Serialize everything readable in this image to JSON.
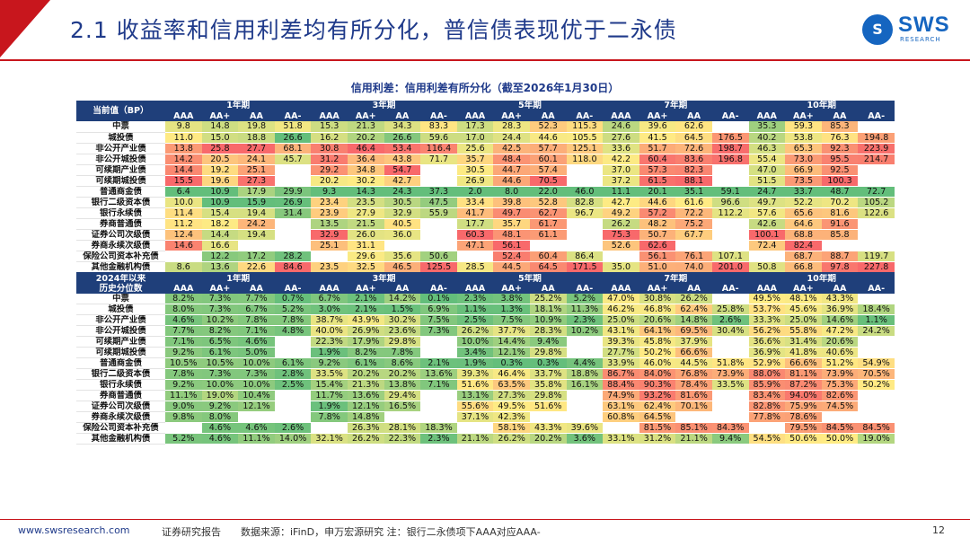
{
  "header": {
    "title": "2.1 收益率和信用利差均有所分化，普信债表现优于二永债",
    "logo_text": "SWS",
    "logo_sub": "RESEARCH",
    "logo_mark": "S"
  },
  "table_caption": "信用利差：信用利差有所分化（截至2026年1月30日）",
  "colors": {
    "header_bg": "#1f3f7a",
    "accent_red": "#c8161d",
    "title_blue": "#1f3a8a"
  },
  "table": {
    "terms": [
      "1年期",
      "3年期",
      "5年期",
      "7年期",
      "10年期"
    ],
    "grades": [
      "AAA",
      "AA+",
      "AA",
      "AA-"
    ],
    "block1": {
      "label_top": "当前值（BP）",
      "rows": [
        {
          "name": "中票",
          "values": [
            "9.8",
            "14.8",
            "19.8",
            "51.8",
            "15.3",
            "21.3",
            "34.3",
            "83.3",
            "17.3",
            "28.3",
            "52.3",
            "115.3",
            "24.6",
            "39.6",
            "62.6",
            "",
            "35.3",
            "59.3",
            "85.3",
            ""
          ]
        },
        {
          "name": "城投债",
          "values": [
            "11.0",
            "15.0",
            "18.8",
            "26.6",
            "16.2",
            "20.2",
            "26.6",
            "59.6",
            "17.0",
            "24.4",
            "44.6",
            "105.5",
            "27.6",
            "41.5",
            "64.5",
            "176.5",
            "40.2",
            "53.8",
            "76.3",
            "194.8"
          ]
        },
        {
          "name": "非公开产业债",
          "values": [
            "13.8",
            "25.8",
            "27.7",
            "68.1",
            "30.8",
            "46.4",
            "53.4",
            "116.4",
            "25.6",
            "42.5",
            "57.7",
            "125.1",
            "33.6",
            "51.7",
            "72.6",
            "198.7",
            "46.3",
            "65.3",
            "92.3",
            "223.9"
          ]
        },
        {
          "name": "非公开城投债",
          "values": [
            "14.2",
            "20.5",
            "24.1",
            "45.7",
            "31.2",
            "36.4",
            "43.8",
            "71.7",
            "35.7",
            "48.4",
            "60.1",
            "118.0",
            "42.2",
            "60.4",
            "83.6",
            "196.8",
            "55.4",
            "73.0",
            "95.5",
            "214.7"
          ]
        },
        {
          "name": "可续期产业债",
          "values": [
            "14.4",
            "19.2",
            "25.1",
            "",
            "29.2",
            "34.8",
            "54.7",
            "",
            "30.5",
            "44.7",
            "57.4",
            "",
            "37.0",
            "57.3",
            "82.3",
            "",
            "47.0",
            "66.9",
            "92.5",
            ""
          ]
        },
        {
          "name": "可续期城投债",
          "values": [
            "15.5",
            "19.6",
            "27.3",
            "",
            "20.2",
            "30.2",
            "42.7",
            "",
            "26.9",
            "44.6",
            "70.5",
            "",
            "37.2",
            "61.5",
            "88.1",
            "",
            "51.5",
            "73.5",
            "100.3",
            ""
          ]
        },
        {
          "name": "普通商金债",
          "values": [
            "6.4",
            "10.9",
            "17.9",
            "29.9",
            "9.3",
            "14.3",
            "24.3",
            "37.3",
            "2.0",
            "8.0",
            "22.0",
            "46.0",
            "11.1",
            "20.1",
            "35.1",
            "59.1",
            "24.7",
            "33.7",
            "48.7",
            "72.7"
          ]
        },
        {
          "name": "银行二级资本债",
          "values": [
            "10.0",
            "10.9",
            "15.9",
            "26.9",
            "23.4",
            "23.5",
            "30.5",
            "47.5",
            "33.4",
            "39.8",
            "52.8",
            "82.8",
            "42.7",
            "44.6",
            "61.6",
            "96.6",
            "49.7",
            "52.2",
            "70.2",
            "105.2"
          ]
        },
        {
          "name": "银行永续债",
          "values": [
            "11.4",
            "15.4",
            "19.4",
            "31.4",
            "23.9",
            "27.9",
            "32.9",
            "55.9",
            "41.7",
            "49.7",
            "62.7",
            "96.7",
            "49.2",
            "57.2",
            "72.2",
            "112.2",
            "57.6",
            "65.6",
            "81.6",
            "122.6"
          ]
        },
        {
          "name": "券商普通债",
          "values": [
            "11.2",
            "18.2",
            "24.2",
            "",
            "13.5",
            "21.5",
            "40.5",
            "",
            "17.7",
            "35.7",
            "61.7",
            "",
            "26.2",
            "48.2",
            "75.2",
            "",
            "42.6",
            "64.6",
            "91.6",
            ""
          ]
        },
        {
          "name": "证券公司次级债",
          "values": [
            "12.4",
            "14.4",
            "19.4",
            "",
            "32.9",
            "26.0",
            "36.0",
            "",
            "60.3",
            "48.1",
            "61.1",
            "",
            "75.3",
            "50.7",
            "67.7",
            "",
            "100.1",
            "68.8",
            "85.8",
            ""
          ]
        },
        {
          "name": "券商永续次级债",
          "values": [
            "14.6",
            "16.6",
            "",
            "",
            "25.1",
            "31.1",
            "",
            "",
            "47.1",
            "56.1",
            "",
            "",
            "52.6",
            "62.6",
            "",
            "",
            "72.4",
            "82.4",
            "",
            ""
          ]
        },
        {
          "name": "保险公司资本补充债",
          "values": [
            "",
            "12.2",
            "17.2",
            "28.2",
            "",
            "29.6",
            "35.6",
            "50.6",
            "",
            "52.4",
            "60.4",
            "86.4",
            "",
            "56.1",
            "76.1",
            "107.1",
            "",
            "68.7",
            "88.7",
            "119.7"
          ]
        },
        {
          "name": "其他金融机构债",
          "values": [
            "8.6",
            "13.6",
            "22.6",
            "84.6",
            "23.5",
            "32.5",
            "46.5",
            "125.5",
            "28.5",
            "44.5",
            "64.5",
            "171.5",
            "35.0",
            "51.0",
            "74.0",
            "201.0",
            "50.8",
            "66.8",
            "97.8",
            "227.8"
          ]
        }
      ]
    },
    "block2": {
      "label_top": "2024年以来",
      "label_bottom": "历史分位数",
      "rows": [
        {
          "name": "中票",
          "values": [
            "8.2%",
            "7.3%",
            "7.7%",
            "0.7%",
            "6.7%",
            "2.1%",
            "14.2%",
            "0.1%",
            "2.3%",
            "3.8%",
            "25.2%",
            "5.2%",
            "47.0%",
            "30.8%",
            "26.2%",
            "",
            "49.5%",
            "48.1%",
            "43.3%",
            ""
          ]
        },
        {
          "name": "城投债",
          "values": [
            "8.0%",
            "7.3%",
            "6.7%",
            "5.2%",
            "3.0%",
            "2.1%",
            "1.5%",
            "6.9%",
            "1.1%",
            "1.3%",
            "18.1%",
            "11.3%",
            "46.2%",
            "46.8%",
            "62.4%",
            "25.8%",
            "53.7%",
            "45.6%",
            "36.9%",
            "18.4%"
          ]
        },
        {
          "name": "非公开产业债",
          "values": [
            "4.6%",
            "10.2%",
            "7.8%",
            "7.8%",
            "38.7%",
            "43.9%",
            "30.2%",
            "7.5%",
            "2.5%",
            "7.5%",
            "10.9%",
            "2.3%",
            "25.0%",
            "20.6%",
            "14.8%",
            "2.6%",
            "33.3%",
            "25.0%",
            "14.6%",
            "1.1%"
          ]
        },
        {
          "name": "非公开城投债",
          "values": [
            "7.7%",
            "8.2%",
            "7.1%",
            "4.8%",
            "40.0%",
            "26.9%",
            "23.6%",
            "7.3%",
            "26.2%",
            "37.7%",
            "28.3%",
            "10.2%",
            "43.1%",
            "64.1%",
            "69.5%",
            "30.4%",
            "56.2%",
            "55.8%",
            "47.2%",
            "24.2%"
          ]
        },
        {
          "name": "可续期产业债",
          "values": [
            "7.1%",
            "6.5%",
            "4.6%",
            "",
            "22.3%",
            "17.9%",
            "29.8%",
            "",
            "10.0%",
            "14.4%",
            "9.4%",
            "",
            "39.3%",
            "45.8%",
            "37.9%",
            "",
            "36.6%",
            "31.4%",
            "20.6%",
            ""
          ]
        },
        {
          "name": "可续期城投债",
          "values": [
            "9.2%",
            "6.1%",
            "5.0%",
            "",
            "1.9%",
            "8.2%",
            "7.8%",
            "",
            "3.4%",
            "12.1%",
            "29.8%",
            "",
            "27.7%",
            "50.2%",
            "66.6%",
            "",
            "36.9%",
            "41.8%",
            "40.6%",
            ""
          ]
        },
        {
          "name": "普通商金债",
          "values": [
            "10.5%",
            "10.5%",
            "10.0%",
            "6.1%",
            "9.2%",
            "6.1%",
            "8.6%",
            "2.1%",
            "1.9%",
            "0.3%",
            "0.3%",
            "4.4%",
            "33.9%",
            "46.0%",
            "44.5%",
            "51.8%",
            "52.9%",
            "66.6%",
            "51.2%",
            "54.9%"
          ]
        },
        {
          "name": "银行二级资本债",
          "values": [
            "7.8%",
            "7.3%",
            "7.3%",
            "2.8%",
            "33.5%",
            "20.2%",
            "20.2%",
            "13.6%",
            "39.3%",
            "46.4%",
            "33.7%",
            "18.8%",
            "86.7%",
            "84.0%",
            "76.8%",
            "73.9%",
            "88.0%",
            "81.1%",
            "73.9%",
            "70.5%"
          ]
        },
        {
          "name": "银行永续债",
          "values": [
            "9.2%",
            "10.0%",
            "10.0%",
            "2.5%",
            "15.4%",
            "21.3%",
            "13.8%",
            "7.1%",
            "51.6%",
            "63.5%",
            "35.8%",
            "16.1%",
            "88.4%",
            "90.3%",
            "78.4%",
            "33.5%",
            "85.9%",
            "87.2%",
            "75.3%",
            "50.2%"
          ]
        },
        {
          "name": "券商普通债",
          "values": [
            "11.1%",
            "19.0%",
            "10.4%",
            "",
            "11.7%",
            "13.6%",
            "29.4%",
            "",
            "13.1%",
            "27.3%",
            "29.8%",
            "",
            "74.9%",
            "93.2%",
            "81.6%",
            "",
            "83.4%",
            "94.0%",
            "82.6%",
            ""
          ]
        },
        {
          "name": "证券公司次级债",
          "values": [
            "9.0%",
            "9.2%",
            "12.1%",
            "",
            "1.9%",
            "12.1%",
            "16.5%",
            "",
            "55.6%",
            "49.5%",
            "51.6%",
            "",
            "63.1%",
            "62.4%",
            "70.1%",
            "",
            "82.8%",
            "75.9%",
            "74.5%",
            ""
          ]
        },
        {
          "name": "券商永续次级债",
          "values": [
            "9.8%",
            "8.0%",
            "",
            "",
            "7.8%",
            "14.8%",
            "",
            "",
            "37.1%",
            "42.3%",
            "",
            "",
            "60.8%",
            "64.5%",
            "",
            "",
            "77.8%",
            "78.6%",
            "",
            ""
          ]
        },
        {
          "name": "保险公司资本补充债",
          "values": [
            "",
            "4.6%",
            "4.6%",
            "2.6%",
            "",
            "26.3%",
            "28.1%",
            "18.3%",
            "",
            "58.1%",
            "43.3%",
            "39.6%",
            "",
            "81.5%",
            "85.1%",
            "84.3%",
            "",
            "79.5%",
            "84.5%",
            "84.5%"
          ]
        },
        {
          "name": "其他金融机构债",
          "values": [
            "5.2%",
            "4.6%",
            "11.1%",
            "14.0%",
            "32.1%",
            "26.2%",
            "22.3%",
            "2.3%",
            "21.1%",
            "26.2%",
            "20.2%",
            "3.6%",
            "33.1%",
            "31.2%",
            "21.1%",
            "9.4%",
            "54.5%",
            "50.6%",
            "50.0%",
            "19.0%"
          ]
        }
      ]
    }
  },
  "footer": {
    "site": "www.swsresearch.com",
    "report": "证券研究报告",
    "source": "数据来源：iFinD，申万宏源研究  注：银行二永债项下AAA对应AAA-",
    "page": "12"
  }
}
